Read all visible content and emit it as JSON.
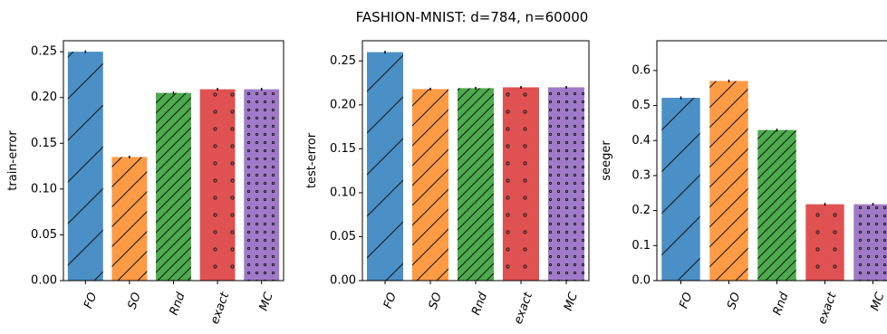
{
  "title": "FASHION-MNIST: d=784, n=60000",
  "colors": {
    "FO": "#4a8fc5",
    "SO": "#ff9a45",
    "Rnd": "#4cab4c",
    "exact": "#e05252",
    "MC": "#a07ac8"
  },
  "hatches": {
    "FO": "diag-wide",
    "SO": "diag",
    "Rnd": "diag-dense",
    "exact": "dots-sparse",
    "MC": "dots-dense"
  },
  "chart_data": [
    {
      "type": "bar",
      "categories": [
        "FO",
        "SO",
        "Rnd",
        "exact",
        "MC"
      ],
      "values": [
        0.25,
        0.135,
        0.205,
        0.209,
        0.209
      ],
      "xlabel": "",
      "ylabel": "train-error",
      "ylim": [
        0,
        0.262
      ],
      "yticks": [
        "0.00",
        "0.05",
        "0.10",
        "0.15",
        "0.20",
        "0.25"
      ],
      "grid": false
    },
    {
      "type": "bar",
      "categories": [
        "FO",
        "SO",
        "Rnd",
        "exact",
        "MC"
      ],
      "values": [
        0.26,
        0.218,
        0.219,
        0.22,
        0.22
      ],
      "xlabel": "",
      "ylabel": "test-error",
      "ylim": [
        0,
        0.273
      ],
      "yticks": [
        "0.00",
        "0.05",
        "0.10",
        "0.15",
        "0.20",
        "0.25"
      ],
      "grid": false
    },
    {
      "type": "bar",
      "categories": [
        "FO",
        "SO",
        "Rnd",
        "exact",
        "MC"
      ],
      "values": [
        0.522,
        0.57,
        0.43,
        0.218,
        0.218
      ],
      "xlabel": "",
      "ylabel": "seeger",
      "ylim": [
        0,
        0.685
      ],
      "yticks": [
        "0.0",
        "0.1",
        "0.2",
        "0.3",
        "0.4",
        "0.5",
        "0.6"
      ],
      "grid": false
    }
  ]
}
